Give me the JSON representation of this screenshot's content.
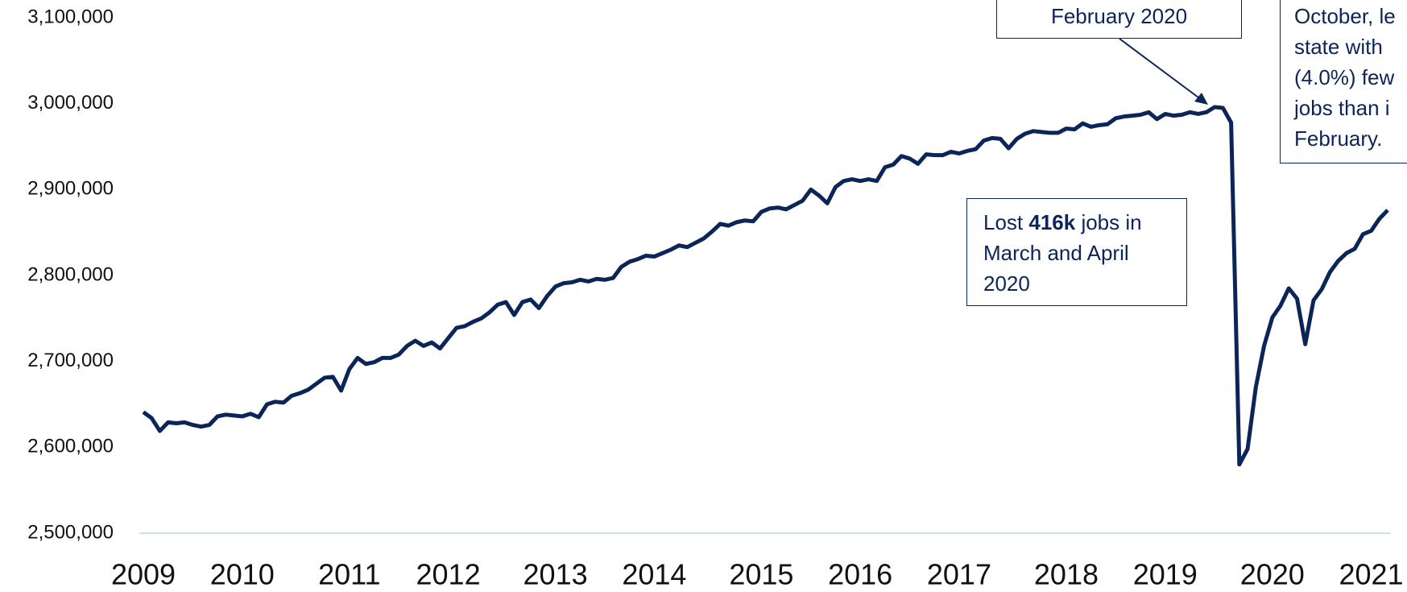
{
  "chart_data": {
    "type": "line",
    "categories": [
      "2009",
      null,
      null,
      null,
      null,
      null,
      null,
      null,
      null,
      null,
      null,
      null,
      "2010",
      null,
      null,
      null,
      null,
      null,
      null,
      null,
      null,
      null,
      null,
      null,
      null,
      "2011",
      null,
      null,
      null,
      null,
      null,
      null,
      null,
      null,
      null,
      null,
      null,
      "2012",
      null,
      null,
      null,
      null,
      null,
      null,
      null,
      null,
      null,
      null,
      null,
      null,
      "2013",
      null,
      null,
      null,
      null,
      null,
      null,
      null,
      null,
      null,
      null,
      null,
      "2014",
      null,
      null,
      null,
      null,
      null,
      null,
      null,
      null,
      null,
      null,
      null,
      null,
      "2015",
      null,
      null,
      null,
      null,
      null,
      null,
      null,
      null,
      null,
      null,
      null,
      "2016",
      null,
      null,
      null,
      null,
      null,
      null,
      null,
      null,
      null,
      null,
      null,
      "2017",
      null,
      null,
      null,
      null,
      null,
      null,
      null,
      null,
      null,
      null,
      null,
      null,
      "2018",
      null,
      null,
      null,
      null,
      null,
      null,
      null,
      null,
      null,
      null,
      null,
      "2019",
      null,
      null,
      null,
      null,
      null,
      null,
      null,
      null,
      null,
      null,
      null,
      null,
      "2020",
      null,
      null,
      null,
      null,
      null,
      null,
      null,
      null,
      null,
      null,
      null,
      "2021",
      null,
      null
    ],
    "series": [
      {
        "color": "#0b2559",
        "values": [
          2641000,
          2634000,
          2619000,
          2629000,
          2628000,
          2629000,
          2626000,
          2624000,
          2626000,
          2636000,
          2638000,
          2637000,
          2636000,
          2639000,
          2635000,
          2650000,
          2653000,
          2652000,
          2660000,
          2663000,
          2667000,
          2674000,
          2681000,
          2682000,
          2666000,
          2691000,
          2704000,
          2697000,
          2699000,
          2704000,
          2704000,
          2708000,
          2718000,
          2724000,
          2718000,
          2722000,
          2715000,
          2727000,
          2739000,
          2741000,
          2746000,
          2750000,
          2757000,
          2766000,
          2769000,
          2754000,
          2769000,
          2772000,
          2762000,
          2776000,
          2787000,
          2791000,
          2792000,
          2795000,
          2793000,
          2796000,
          2795000,
          2797000,
          2810000,
          2816000,
          2819000,
          2823000,
          2822000,
          2826000,
          2830000,
          2835000,
          2833000,
          2838000,
          2843000,
          2851000,
          2860000,
          2858000,
          2862000,
          2864000,
          2863000,
          2874000,
          2878000,
          2879000,
          2877000,
          2882000,
          2887000,
          2900000,
          2893000,
          2884000,
          2903000,
          2910000,
          2912000,
          2910000,
          2912000,
          2910000,
          2926000,
          2929000,
          2939000,
          2936000,
          2930000,
          2941000,
          2940000,
          2940000,
          2944000,
          2942000,
          2945000,
          2947000,
          2957000,
          2960000,
          2959000,
          2948000,
          2959000,
          2965000,
          2968000,
          2967000,
          2966000,
          2966000,
          2971000,
          2970000,
          2977000,
          2973000,
          2975000,
          2976000,
          2983000,
          2985000,
          2986000,
          2987000,
          2990000,
          2982000,
          2988000,
          2986000,
          2987000,
          2990000,
          2988000,
          2990000,
          2996000,
          2995000,
          2978000,
          2580000,
          2598000,
          2670000,
          2718000,
          2751000,
          2765000,
          2785000,
          2773000,
          2720000,
          2771000,
          2784000,
          2804000,
          2817000,
          2826000,
          2831000,
          2848000,
          2852000,
          2866000,
          2876000
        ]
      }
    ],
    "ylim": [
      2500000,
      3100000
    ],
    "yticks": [
      {
        "value": 2500000,
        "label": "2,500,000"
      },
      {
        "value": 2600000,
        "label": "2,600,000"
      },
      {
        "value": 2700000,
        "label": "2,700,000"
      },
      {
        "value": 2800000,
        "label": "2,800,000"
      },
      {
        "value": 2900000,
        "label": "2,900,000"
      },
      {
        "value": 3000000,
        "label": "3,000,000"
      },
      {
        "value": 3100000,
        "label": "3,100,000"
      }
    ],
    "annotations": [
      {
        "lines": [
          "February 2020"
        ]
      },
      {
        "before": "Lost ",
        "bold": "416k",
        "after": " jobs in",
        "lines": [
          "March and April",
          "2020"
        ]
      },
      {
        "lines": [
          "October, le",
          "state with",
          "(4.0%) few",
          "jobs than i",
          "February."
        ]
      }
    ]
  }
}
